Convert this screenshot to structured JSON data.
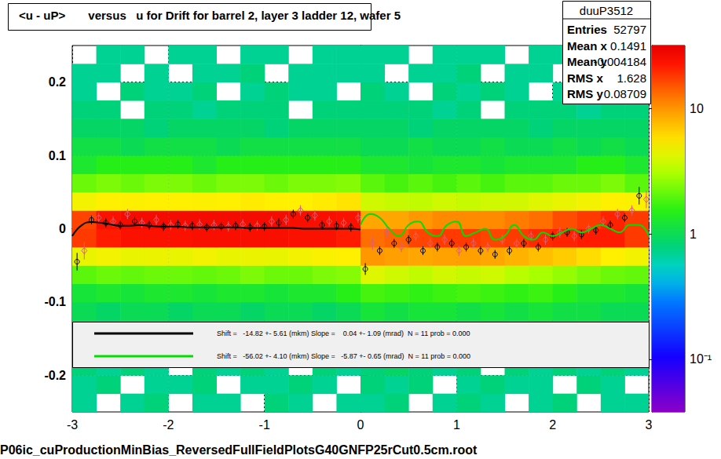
{
  "chart_data": {
    "type": "heatmap",
    "title": "<u - uP>       versus   u for Drift for barrel 2, layer 3 ladder 12, wafer 5",
    "footer": "P06ic_cuProductionMinBias_ReversedFullFieldPlotsG40GNFP25rCut0.5cm.root",
    "xlim": [
      -3,
      3
    ],
    "xticks": [
      -3,
      -2,
      -1,
      0,
      1,
      2,
      3
    ],
    "ylim": [
      -0.25,
      0.25
    ],
    "yticks": [
      -0.2,
      -0.1,
      0,
      0.1,
      0.2
    ],
    "grid": true,
    "cells": {
      "x_bins": [
        -3,
        -2.75,
        -2.5,
        -2.25,
        -2,
        -1.75,
        -1.5,
        -1.25,
        -1,
        -0.75,
        -0.5,
        -0.25,
        0,
        0.25,
        0.5,
        0.75,
        1,
        1.25,
        1.5,
        1.75,
        2,
        2.25,
        2.5,
        2.75,
        3
      ],
      "y_bins": [
        -0.25,
        -0.225,
        -0.2,
        -0.175,
        -0.15,
        -0.125,
        -0.1,
        -0.075,
        -0.05,
        -0.025,
        0,
        0.025,
        0.05,
        0.075,
        0.1,
        0.125,
        0.15,
        0.175,
        0.2,
        0.225,
        0.25
      ],
      "counts": [
        [
          0.7,
          null,
          0.7,
          0.8,
          null,
          0.7,
          0.7,
          null,
          0.8,
          0.7,
          null,
          0.7,
          0.7,
          0.8,
          null,
          0.7,
          0.8,
          0.7,
          null,
          0.7,
          0.8,
          null,
          0.7,
          0.7
        ],
        [
          0.7,
          0.8,
          null,
          0.7,
          0.7,
          0.8,
          null,
          0.7,
          0.7,
          0.8,
          0.7,
          null,
          0.8,
          0.7,
          0.8,
          null,
          0.7,
          0.8,
          0.7,
          0.7,
          null,
          0.8,
          0.7,
          null
        ],
        [
          0.8,
          0.7,
          0.8,
          0.7,
          null,
          0.8,
          0.7,
          0.8,
          0.7,
          null,
          0.8,
          0.7,
          0.8,
          0.9,
          0.8,
          0.7,
          0.8,
          null,
          0.8,
          0.7,
          0.8,
          0.7,
          0.8,
          0.7
        ],
        [
          0.8,
          0.8,
          0.7,
          0.9,
          0.8,
          0.7,
          0.8,
          0.8,
          null,
          0.8,
          0.7,
          0.8,
          0.9,
          0.8,
          0.9,
          0.8,
          0.9,
          0.8,
          0.7,
          0.9,
          0.8,
          0.8,
          null,
          0.8
        ],
        [
          0.9,
          0.8,
          0.9,
          0.8,
          0.9,
          0.9,
          0.8,
          0.9,
          0.8,
          0.9,
          0.8,
          0.9,
          1.0,
          0.9,
          1.0,
          0.9,
          1.0,
          0.9,
          1.0,
          0.9,
          0.9,
          1.0,
          0.9,
          0.9
        ],
        [
          1.0,
          0.9,
          1.0,
          1.0,
          0.9,
          1.0,
          1.0,
          0.9,
          1.0,
          1.0,
          0.9,
          1.0,
          1.2,
          1.1,
          1.2,
          1.2,
          1.1,
          1.2,
          1.1,
          1.2,
          1.1,
          1.1,
          1.0,
          1.0
        ],
        [
          1.2,
          1.3,
          1.2,
          1.3,
          1.3,
          1.2,
          1.3,
          1.3,
          1.2,
          1.3,
          1.3,
          1.5,
          1.8,
          1.7,
          1.6,
          1.7,
          1.8,
          1.7,
          1.6,
          1.7,
          1.5,
          1.3,
          1.3,
          1.2
        ],
        [
          2.0,
          2.2,
          2.1,
          2.2,
          2.2,
          2.1,
          2.2,
          2.4,
          2.2,
          2.2,
          2.4,
          2.5,
          4.2,
          3.8,
          3.5,
          3.9,
          3.6,
          3.8,
          3.3,
          3.0,
          2.7,
          2.4,
          2.2,
          2.1
        ],
        [
          4.5,
          4.8,
          4.5,
          4.6,
          4.5,
          4.8,
          4.5,
          4.6,
          4.5,
          4.8,
          5.0,
          5.2,
          10,
          9.5,
          9,
          9.3,
          9.5,
          9,
          8.2,
          7.5,
          6.8,
          6,
          5.2,
          4.8
        ],
        [
          18,
          22,
          24,
          24,
          24,
          25,
          25,
          25,
          25,
          24,
          24,
          22,
          13,
          14,
          17,
          18,
          18,
          17,
          18,
          20,
          21,
          22,
          22,
          18
        ],
        [
          17,
          24,
          26,
          26,
          26,
          26,
          26,
          26,
          26,
          25,
          25,
          24,
          9,
          9,
          10,
          11,
          11,
          11,
          12,
          13,
          16,
          18,
          21,
          18
        ],
        [
          4.8,
          5.2,
          5.1,
          5.2,
          5.2,
          5.1,
          5.2,
          5.4,
          5.2,
          5.2,
          5.4,
          5.7,
          3.8,
          3.6,
          3.5,
          3.8,
          3.6,
          3.8,
          3.9,
          4.2,
          4.5,
          4.8,
          5.2,
          5.0
        ],
        [
          2.2,
          2.4,
          2.2,
          2.4,
          2.4,
          2.2,
          2.4,
          2.4,
          2.2,
          2.4,
          2.4,
          2.5,
          2.0,
          1.8,
          2.0,
          1.8,
          2.0,
          1.8,
          2.0,
          2.0,
          2.2,
          2.2,
          2.4,
          2.0
        ],
        [
          1.3,
          1.5,
          1.5,
          1.5,
          1.5,
          1.3,
          1.5,
          1.5,
          1.5,
          1.5,
          1.5,
          1.5,
          1.3,
          1.3,
          1.2,
          1.3,
          1.3,
          1.2,
          1.3,
          1.3,
          1.3,
          1.5,
          1.5,
          1.3
        ],
        [
          1.1,
          1.1,
          1.0,
          1.1,
          1.1,
          1.1,
          1.0,
          1.1,
          1.1,
          1.1,
          1.1,
          1.1,
          1.0,
          1.0,
          1.1,
          1.0,
          1.0,
          1.1,
          1.0,
          1.0,
          1.1,
          1.0,
          1.1,
          1.0
        ],
        [
          0.9,
          0.9,
          0.9,
          0.8,
          0.9,
          0.9,
          0.9,
          0.9,
          0.8,
          0.9,
          0.9,
          0.9,
          0.9,
          0.9,
          0.8,
          0.9,
          0.9,
          0.9,
          0.9,
          0.8,
          0.9,
          0.9,
          0.9,
          0.9
        ],
        [
          0.8,
          0.8,
          null,
          0.8,
          0.8,
          0.7,
          0.8,
          0.8,
          0.8,
          null,
          0.8,
          0.8,
          0.8,
          0.8,
          0.8,
          0.7,
          0.8,
          null,
          0.8,
          0.8,
          0.8,
          0.7,
          0.8,
          0.8
        ],
        [
          0.7,
          null,
          0.8,
          0.7,
          0.7,
          0.8,
          null,
          0.7,
          0.8,
          0.7,
          0.7,
          null,
          0.8,
          0.7,
          null,
          0.8,
          0.7,
          0.8,
          0.7,
          null,
          0.7,
          0.8,
          0.7,
          0.8
        ],
        [
          0.7,
          0.7,
          null,
          0.7,
          null,
          0.7,
          0.7,
          0.8,
          null,
          0.7,
          0.7,
          0.7,
          0.7,
          null,
          0.7,
          0.7,
          0.8,
          null,
          0.7,
          0.7,
          null,
          0.7,
          0.7,
          0.8
        ],
        [
          null,
          0.7,
          0.7,
          null,
          0.7,
          0.7,
          null,
          0.7,
          0.7,
          null,
          0.7,
          0.7,
          0.7,
          0.7,
          null,
          0.7,
          0.7,
          0.7,
          null,
          0.7,
          0.7,
          null,
          0.8,
          0.7
        ]
      ]
    },
    "zlim": [
      0.038,
      32
    ],
    "zticks": [
      {
        "value": 0.1,
        "label": "10⁻¹"
      },
      1,
      10
    ],
    "series": [
      {
        "type": "scatter",
        "marker": "circle",
        "color": "#000000",
        "x": [
          -2.95,
          -2.8,
          -2.65,
          -2.5,
          -2.35,
          -2.2,
          -2.05,
          -1.9,
          -1.75,
          -1.6,
          -1.45,
          -1.3,
          -1.15,
          -1.0,
          -0.85,
          -0.7,
          -0.55,
          -0.4,
          -0.25,
          -0.1,
          0.05,
          0.2,
          0.35,
          0.5,
          0.65,
          0.8,
          0.95,
          1.1,
          1.25,
          1.4,
          1.55,
          1.7,
          1.85,
          2.0,
          2.15,
          2.3,
          2.45,
          2.6,
          2.75,
          2.9
        ],
        "values": [
          -0.045,
          0.012,
          0.008,
          0.005,
          0.01,
          0.005,
          0.003,
          0.006,
          0.004,
          0.002,
          0.003,
          0.004,
          0.002,
          0.003,
          0.008,
          0.02,
          0.015,
          0.005,
          0.004,
          0.002,
          -0.055,
          -0.03,
          -0.02,
          -0.015,
          -0.03,
          -0.025,
          -0.02,
          -0.025,
          -0.03,
          -0.035,
          -0.03,
          -0.02,
          -0.025,
          -0.01,
          -0.005,
          -0.008,
          -0.002,
          0.005,
          0.015,
          0.045
        ],
        "errors": [
          0.012,
          0.006,
          0.006,
          0.006,
          0.006,
          0.006,
          0.006,
          0.006,
          0.006,
          0.006,
          0.006,
          0.006,
          0.006,
          0.006,
          0.006,
          0.006,
          0.006,
          0.006,
          0.006,
          0.006,
          0.008,
          0.006,
          0.006,
          0.006,
          0.006,
          0.006,
          0.006,
          0.006,
          0.006,
          0.006,
          0.006,
          0.006,
          0.006,
          0.006,
          0.006,
          0.006,
          0.006,
          0.006,
          0.006,
          0.012
        ]
      },
      {
        "type": "scatter",
        "marker": "diamond",
        "color": "#e06070",
        "x": [
          -2.875,
          -2.725,
          -2.575,
          -2.425,
          -2.275,
          -2.125,
          -1.975,
          -1.825,
          -1.675,
          -1.525,
          -1.375,
          -1.225,
          -1.075,
          -0.925,
          -0.775,
          -0.625,
          -0.475,
          -0.325,
          -0.175,
          -0.025,
          0.125,
          0.275,
          0.425,
          0.575,
          0.725,
          0.875,
          1.025,
          1.175,
          1.325,
          1.475,
          1.625,
          1.775,
          1.925,
          2.075,
          2.225,
          2.375,
          2.525,
          2.675,
          2.825,
          2.975
        ],
        "values": [
          -0.03,
          0.015,
          0.01,
          0.02,
          0.008,
          0.012,
          0.005,
          0.004,
          0.006,
          0.005,
          0.003,
          0.006,
          0.004,
          0.01,
          0.012,
          0.025,
          0.018,
          0.01,
          0.008,
          0.015,
          -0.02,
          -0.005,
          -0.025,
          -0.01,
          -0.02,
          -0.015,
          -0.03,
          -0.02,
          -0.025,
          -0.015,
          -0.02,
          -0.01,
          -0.015,
          -0.005,
          -0.01,
          0.0,
          0.01,
          0.02,
          0.025,
          0.04
        ],
        "errors": [
          0.012,
          0.007,
          0.007,
          0.007,
          0.007,
          0.007,
          0.007,
          0.007,
          0.007,
          0.007,
          0.007,
          0.007,
          0.007,
          0.007,
          0.007,
          0.007,
          0.007,
          0.007,
          0.007,
          0.007,
          0.009,
          0.007,
          0.007,
          0.007,
          0.007,
          0.007,
          0.007,
          0.007,
          0.007,
          0.007,
          0.007,
          0.007,
          0.007,
          0.007,
          0.007,
          0.007,
          0.007,
          0.007,
          0.007,
          0.012
        ]
      },
      {
        "type": "line",
        "name": "Shift =   -14.82 +- 5.61 (mkm) Slope =    0.04 +- 1.09 (mrad)  N = 11 prob = 0.000",
        "color": "#000000",
        "x": [
          -3,
          -2.9,
          -2.8,
          -2.7,
          -2.6,
          -2.5,
          -2.4,
          -2.3,
          -2.2,
          -2.1,
          -2,
          -1.9,
          -1.8,
          -1.7,
          -1.6,
          -1.5,
          -1.4,
          -1.3,
          -1.2,
          -1.1,
          -1,
          -0.9,
          -0.8,
          -0.7,
          -0.6,
          -0.5,
          -0.4,
          -0.3,
          -0.2,
          -0.1,
          0
        ],
        "values": [
          -0.01,
          0.005,
          0.009,
          0.008,
          0.006,
          0.004,
          0.004,
          0.005,
          0.004,
          0.003,
          0.003,
          0.003,
          0.002,
          0.002,
          0.002,
          0.002,
          0.002,
          0.002,
          0.001,
          0.001,
          0.001,
          0.001,
          0.001,
          0.001,
          0.0,
          0.0,
          0.0,
          0.0,
          0.0,
          0.0,
          -0.001
        ]
      },
      {
        "type": "line",
        "name": "Shift =   -56.02 +- 4.10 (mkm) Slope =   -5.87 +- 0.65 (mrad)  N = 11 prob = 0.000",
        "color": "#00dd00",
        "x": [
          0,
          0.1,
          0.2,
          0.3,
          0.4,
          0.5,
          0.6,
          0.7,
          0.8,
          0.9,
          1,
          1.1,
          1.2,
          1.3,
          1.4,
          1.5,
          1.6,
          1.7,
          1.8,
          1.9,
          2,
          2.1,
          2.2,
          2.3,
          2.4,
          2.5,
          2.6,
          2.7,
          2.8,
          2.9,
          3
        ],
        "values": [
          0.005,
          0.02,
          0.015,
          0.0,
          -0.01,
          0.005,
          0.01,
          -0.005,
          -0.01,
          0.005,
          0.01,
          -0.01,
          -0.005,
          0.0,
          -0.015,
          -0.01,
          0.005,
          -0.01,
          -0.015,
          -0.005,
          -0.01,
          -0.005,
          0.0,
          -0.005,
          0.0,
          0.005,
          0.0,
          -0.005,
          0.005,
          0.005,
          -0.01
        ]
      }
    ],
    "stats": {
      "title": "duuP3512",
      "rows": [
        [
          "Entries",
          52797
        ],
        [
          "Mean x",
          0.1491
        ],
        [
          "Mean y",
          -0.004184
        ],
        [
          "RMS x",
          1.628
        ],
        [
          "RMS y",
          0.08709
        ]
      ]
    }
  }
}
